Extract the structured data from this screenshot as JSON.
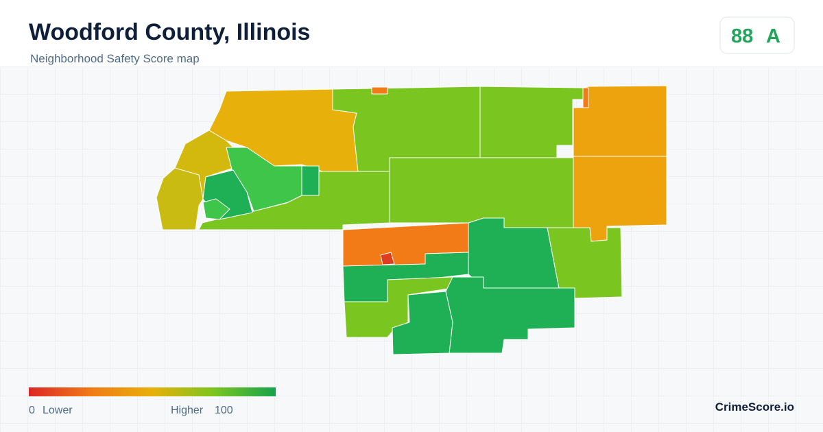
{
  "header": {
    "title": "Woodford County, Illinois",
    "subtitle": "Neighborhood Safety Score map"
  },
  "score": {
    "value": "88",
    "grade": "A"
  },
  "legend": {
    "min": "0",
    "min_label": "Lower",
    "max_label": "Higher",
    "max": "100"
  },
  "brand": "CrimeScore.io"
}
